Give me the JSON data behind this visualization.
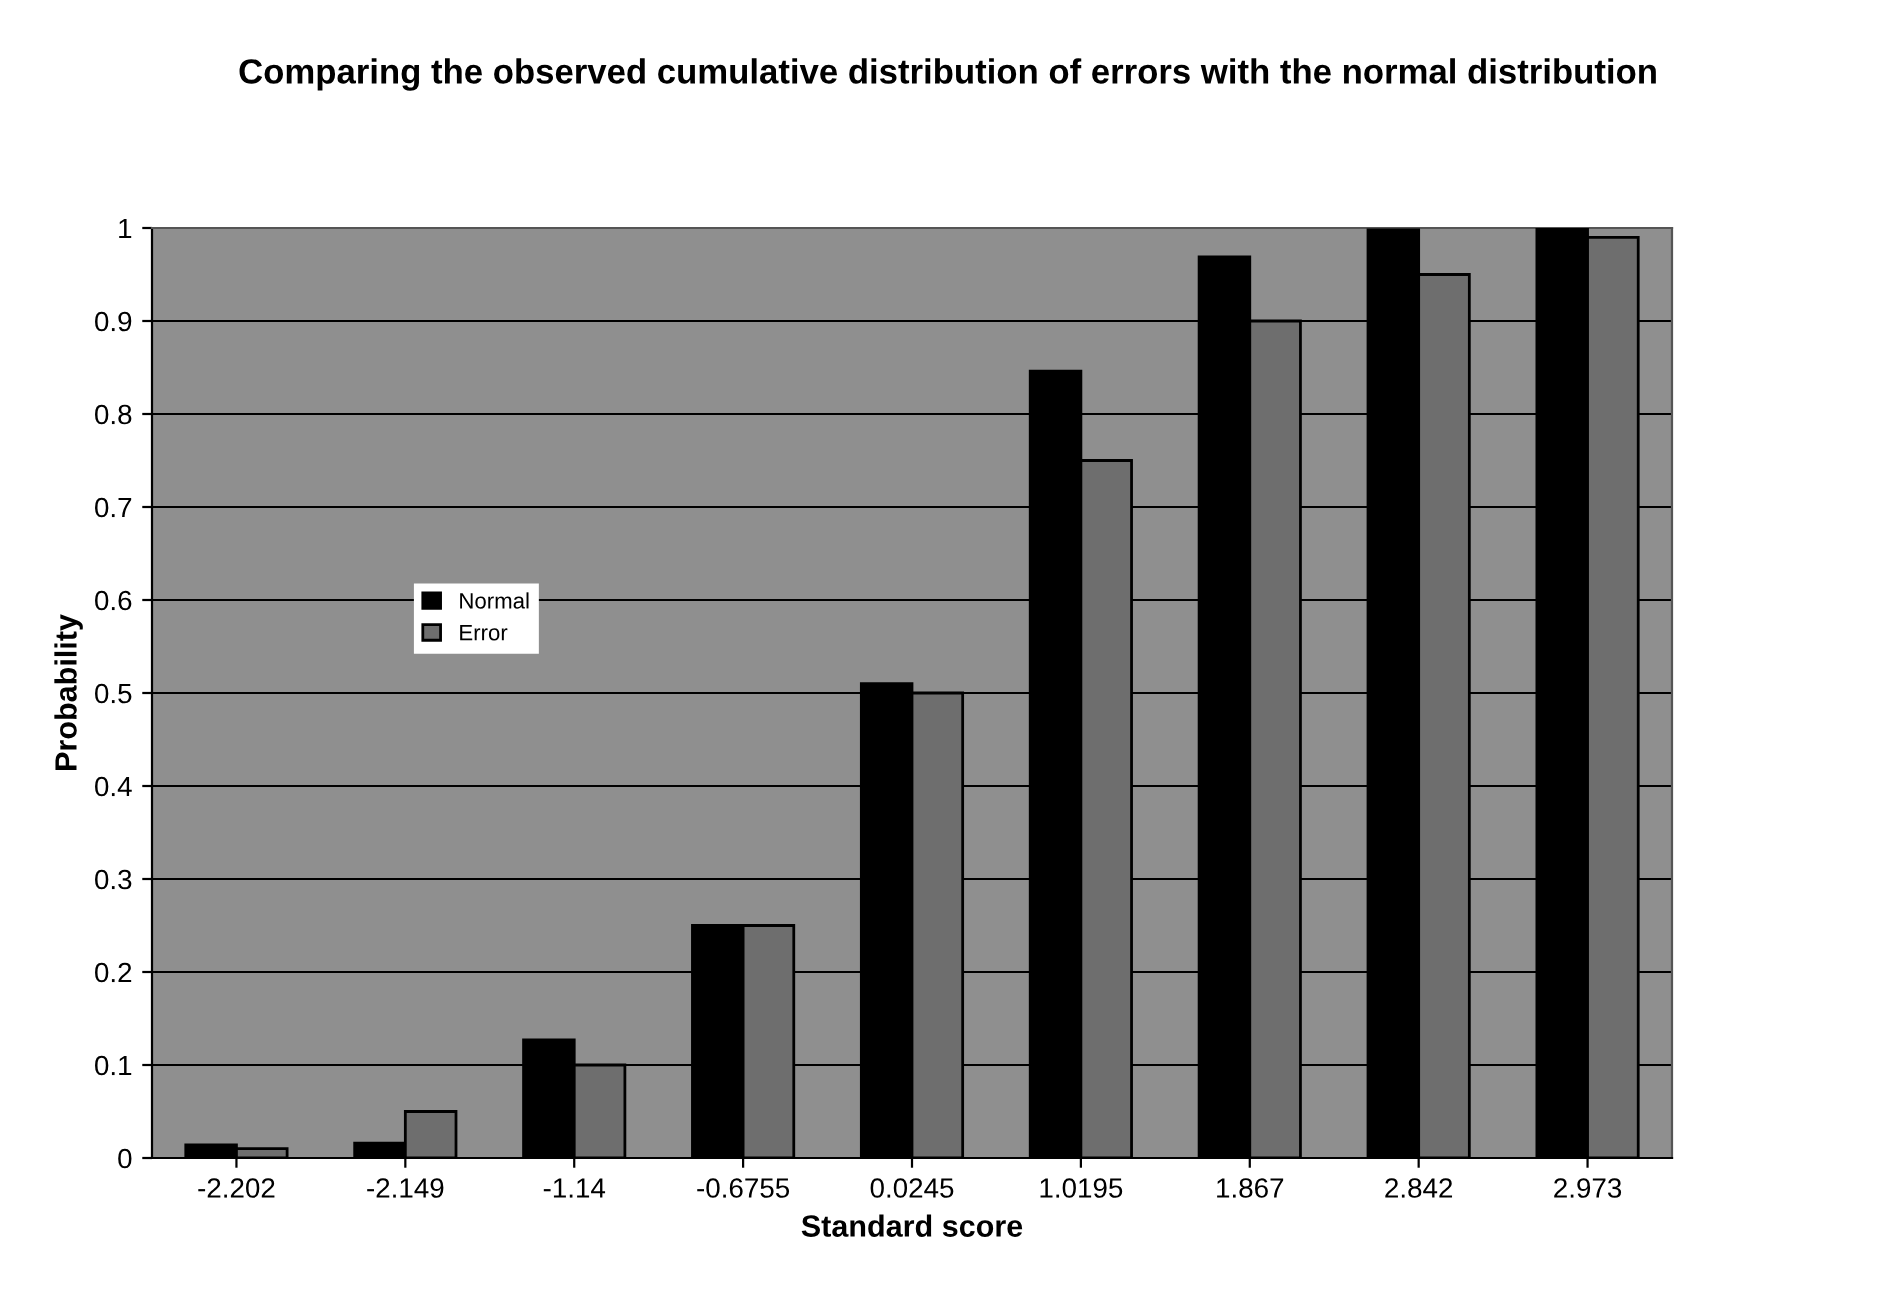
{
  "chart_data": {
    "type": "bar",
    "title": "Comparing the observed cumulative distribution of errors with the normal distribution",
    "xlabel": "Standard score",
    "ylabel": "Probability",
    "categories": [
      "-2.202",
      "-2.149",
      "-1.14",
      "-0.6755",
      "0.0245",
      "1.0195",
      "1.867",
      "2.842",
      "2.973"
    ],
    "series": [
      {
        "name": "Normal",
        "color": "#000000",
        "values": [
          0.014,
          0.016,
          0.127,
          0.25,
          0.51,
          0.846,
          0.969,
          0.998,
          0.999
        ]
      },
      {
        "name": "Error",
        "color": "#6e6e6e",
        "values": [
          0.01,
          0.05,
          0.1,
          0.25,
          0.5,
          0.75,
          0.9,
          0.95,
          0.99
        ]
      }
    ],
    "ylim": [
      0,
      1
    ],
    "yticks": [
      0,
      0.1,
      0.2,
      0.3,
      0.4,
      0.5,
      0.6,
      0.7,
      0.8,
      0.9,
      1
    ],
    "grid": "y",
    "legend": "center left"
  }
}
